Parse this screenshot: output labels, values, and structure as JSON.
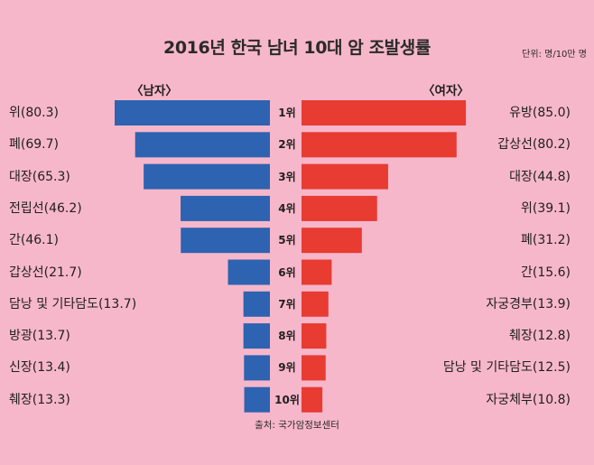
{
  "header": {
    "title": "2016년 한국 남녀 10대 암 조발생률",
    "unit": "단위: 명/10만 명"
  },
  "groups": {
    "male": "〈남자〉",
    "female": "〈여자〉"
  },
  "ranks": [
    "1위",
    "2위",
    "3위",
    "4위",
    "5위",
    "6위",
    "7위",
    "8위",
    "9위",
    "10위"
  ],
  "male_labels": [
    "위(80.3)",
    "폐(69.7)",
    "대장(65.3)",
    "전립선(46.2)",
    "간(46.1)",
    "갑상선(21.7)",
    "담낭 및 기타담도(13.7)",
    "방광(13.7)",
    "신장(13.4)",
    "췌장(13.3)"
  ],
  "female_labels": [
    "유방(85.0)",
    "갑상선(80.2)",
    "대장(44.8)",
    "위(39.1)",
    "폐(31.2)",
    "간(15.6)",
    "자궁경부(13.9)",
    "췌장(12.8)",
    "담낭 및 기타담도(12.5)",
    "자궁체부(10.8)"
  ],
  "source": "출처: 국가암정보센터",
  "colors": {
    "background": "#f7b7cb",
    "male": "#2d63b0",
    "female": "#e83b32"
  },
  "chart_data": {
    "type": "bar",
    "categories": [
      "1위",
      "2위",
      "3위",
      "4위",
      "5위",
      "6위",
      "7위",
      "8위",
      "9위",
      "10위"
    ],
    "series": [
      {
        "name": "남자",
        "values": [
          80.3,
          69.7,
          65.3,
          46.2,
          46.1,
          21.7,
          13.7,
          13.7,
          13.4,
          13.3
        ],
        "color": "#2d63b0"
      },
      {
        "name": "여자",
        "values": [
          85.0,
          80.2,
          44.8,
          39.1,
          31.2,
          15.6,
          13.9,
          12.8,
          12.5,
          10.8
        ],
        "color": "#e83b32"
      }
    ]
  }
}
